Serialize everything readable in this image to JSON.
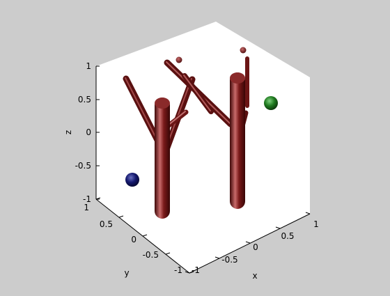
{
  "figure": {
    "background": "#cccccc",
    "box_color": "#ffffff",
    "edge_color": "#000000"
  },
  "axes": {
    "xlabel": "x",
    "ylabel": "y",
    "zlabel": "z",
    "xticks": [
      "-1",
      "-0.5",
      "0",
      "0.5",
      "1"
    ],
    "yticks": [
      "1",
      "0.5",
      "0",
      "-0.5",
      "-1"
    ],
    "zticks": [
      "1",
      "0.5",
      "0",
      "-0.5",
      "-1"
    ]
  },
  "scene": {
    "tube_color": "#6b1515",
    "tube_highlight": "#c86a6a",
    "sphere_green": "#1f7a1f",
    "sphere_blue": "#14186e"
  }
}
